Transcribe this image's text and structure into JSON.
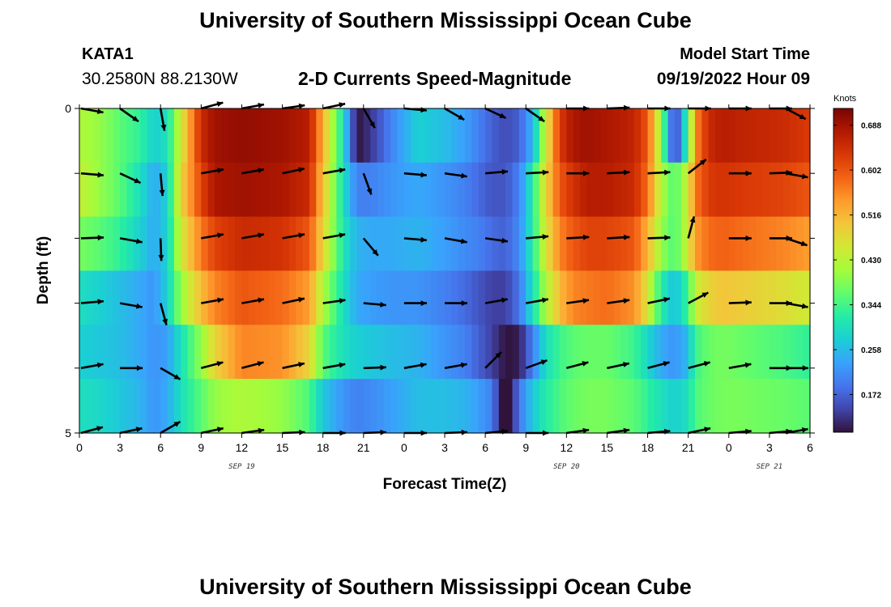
{
  "header": {
    "title": "University of Southern Mississippi Ocean Cube",
    "station_id": "KATA1",
    "coordinates": "30.2580N  88.2130W",
    "plot_title": "2-D Currents Speed-Magnitude",
    "model_start_label": "Model Start Time",
    "model_start_value": "09/19/2022 Hour 09"
  },
  "footer": {
    "title": "University of Southern Mississippi Ocean Cube"
  },
  "chart_data": {
    "type": "heatmap",
    "title": "2-D Currents Speed-Magnitude",
    "xlabel": "Forecast Time(Z)",
    "ylabel": "Depth (ft)",
    "x_tick_labels": [
      "0",
      "3",
      "6",
      "9",
      "12",
      "15",
      "18",
      "21",
      "0",
      "3",
      "6",
      "9",
      "12",
      "15",
      "18",
      "21",
      "0",
      "3",
      "6"
    ],
    "x_range_hours_from_sep19_00z": [
      0,
      54
    ],
    "date_labels": [
      {
        "text": "SEP 19",
        "hour": 12
      },
      {
        "text": "SEP 20",
        "hour": 36
      },
      {
        "text": "SEP 21",
        "hour": 51
      }
    ],
    "y_tick_labels": [
      "0",
      "5"
    ],
    "ylim_ft": [
      0,
      5
    ],
    "depth_levels_ft": [
      0,
      1,
      2,
      3,
      4,
      5
    ],
    "colorbar": {
      "unit": "Knots",
      "ticks": [
        "0.688",
        "0.602",
        "0.516",
        "0.430",
        "0.344",
        "0.258",
        "0.172"
      ],
      "range": [
        0.1,
        0.72
      ],
      "colors": [
        "#30123b",
        "#4145ab",
        "#4675ed",
        "#39a2fc",
        "#1bcfd4",
        "#24eca6",
        "#61fc6c",
        "#a4fc3b",
        "#d1e834",
        "#f3c63a",
        "#fe9b2d",
        "#f36315",
        "#d93806",
        "#b11901",
        "#7a0403"
      ]
    },
    "speed_anchor_hours": [
      0,
      1.5,
      3,
      4.5,
      5.5,
      6.5,
      7.5,
      9,
      10,
      12,
      15,
      17,
      18,
      19.5,
      20.5,
      21.5,
      23,
      25,
      27,
      28.5,
      29.5,
      30.5,
      31.5,
      32.5,
      33.5,
      34.5,
      35.5,
      36.5,
      37.5,
      39,
      41,
      42,
      43,
      44,
      45,
      45.5,
      46.5,
      47.5,
      49,
      52,
      54
    ],
    "speed_by_depth_knots": [
      [
        0.42,
        0.4,
        0.36,
        0.33,
        0.28,
        0.3,
        0.45,
        0.65,
        0.69,
        0.7,
        0.69,
        0.67,
        0.52,
        0.3,
        0.1,
        0.13,
        0.2,
        0.28,
        0.26,
        0.23,
        0.2,
        0.17,
        0.15,
        0.17,
        0.25,
        0.45,
        0.63,
        0.68,
        0.69,
        0.68,
        0.66,
        0.6,
        0.4,
        0.12,
        0.35,
        0.55,
        0.65,
        0.67,
        0.66,
        0.65,
        0.63
      ],
      [
        0.44,
        0.4,
        0.36,
        0.3,
        0.24,
        0.28,
        0.48,
        0.62,
        0.68,
        0.69,
        0.68,
        0.65,
        0.5,
        0.3,
        0.2,
        0.2,
        0.22,
        0.24,
        0.22,
        0.2,
        0.18,
        0.16,
        0.16,
        0.2,
        0.32,
        0.48,
        0.6,
        0.64,
        0.67,
        0.67,
        0.65,
        0.58,
        0.42,
        0.35,
        0.45,
        0.57,
        0.63,
        0.64,
        0.63,
        0.62,
        0.6
      ],
      [
        0.38,
        0.36,
        0.33,
        0.28,
        0.24,
        0.28,
        0.45,
        0.57,
        0.62,
        0.65,
        0.64,
        0.6,
        0.48,
        0.31,
        0.25,
        0.24,
        0.24,
        0.25,
        0.23,
        0.21,
        0.2,
        0.18,
        0.17,
        0.21,
        0.32,
        0.46,
        0.56,
        0.6,
        0.62,
        0.62,
        0.6,
        0.52,
        0.4,
        0.35,
        0.45,
        0.54,
        0.58,
        0.59,
        0.58,
        0.56,
        0.54
      ],
      [
        0.3,
        0.28,
        0.26,
        0.24,
        0.22,
        0.28,
        0.4,
        0.51,
        0.56,
        0.6,
        0.58,
        0.54,
        0.42,
        0.3,
        0.24,
        0.23,
        0.22,
        0.22,
        0.2,
        0.18,
        0.16,
        0.14,
        0.14,
        0.19,
        0.3,
        0.42,
        0.51,
        0.56,
        0.57,
        0.58,
        0.55,
        0.46,
        0.32,
        0.26,
        0.34,
        0.44,
        0.48,
        0.5,
        0.49,
        0.47,
        0.45
      ]
    ],
    "speed_by_depth_knots_deep": [
      [
        0.28,
        0.27,
        0.26,
        0.24,
        0.22,
        0.23,
        0.3,
        0.4,
        0.48,
        0.56,
        0.55,
        0.48,
        0.36,
        0.3,
        0.28,
        0.27,
        0.26,
        0.25,
        0.22,
        0.2,
        0.17,
        0.14,
        0.1,
        0.11,
        0.2,
        0.3,
        0.34,
        0.36,
        0.37,
        0.37,
        0.34,
        0.29,
        0.24,
        0.22,
        0.26,
        0.34,
        0.37,
        0.38,
        0.37,
        0.35,
        0.33
      ],
      [
        0.3,
        0.29,
        0.27,
        0.25,
        0.22,
        0.24,
        0.3,
        0.36,
        0.4,
        0.42,
        0.4,
        0.35,
        0.27,
        0.22,
        0.2,
        0.21,
        0.23,
        0.26,
        0.26,
        0.25,
        0.23,
        0.2,
        0.06,
        0.19,
        0.27,
        0.32,
        0.35,
        0.37,
        0.38,
        0.38,
        0.36,
        0.33,
        0.3,
        0.28,
        0.3,
        0.35,
        0.37,
        0.38,
        0.38,
        0.37,
        0.36
      ]
    ],
    "arrow_columns_hours": [
      0,
      3,
      6,
      9,
      12,
      15,
      18,
      21,
      24,
      27,
      30,
      33,
      36,
      39,
      42,
      45,
      48,
      51,
      54
    ],
    "arrow_directions_deg_math": [
      [
        -10,
        -35,
        -80,
        15,
        10,
        8,
        12,
        -60,
        -5,
        -30,
        -25,
        -35,
        0,
        2,
        0,
        0,
        0,
        0,
        -28
      ],
      [
        -5,
        -25,
        -85,
        10,
        10,
        12,
        10,
        -70,
        -5,
        -8,
        5,
        3,
        0,
        3,
        3,
        38,
        0,
        2,
        -10
      ],
      [
        2,
        -10,
        -88,
        10,
        10,
        10,
        10,
        -50,
        -5,
        -10,
        -8,
        5,
        3,
        3,
        2,
        75,
        0,
        0,
        -18
      ],
      [
        5,
        -10,
        -75,
        10,
        10,
        12,
        8,
        -5,
        0,
        0,
        10,
        10,
        8,
        8,
        12,
        28,
        2,
        0,
        -10
      ],
      [
        10,
        0,
        -30,
        15,
        15,
        12,
        10,
        2,
        10,
        10,
        45,
        20,
        15,
        12,
        15,
        15,
        10,
        0,
        0
      ],
      [
        15,
        12,
        30,
        12,
        8,
        2,
        0,
        2,
        0,
        2,
        5,
        0,
        8,
        8,
        5,
        12,
        5,
        5,
        10
      ]
    ]
  }
}
